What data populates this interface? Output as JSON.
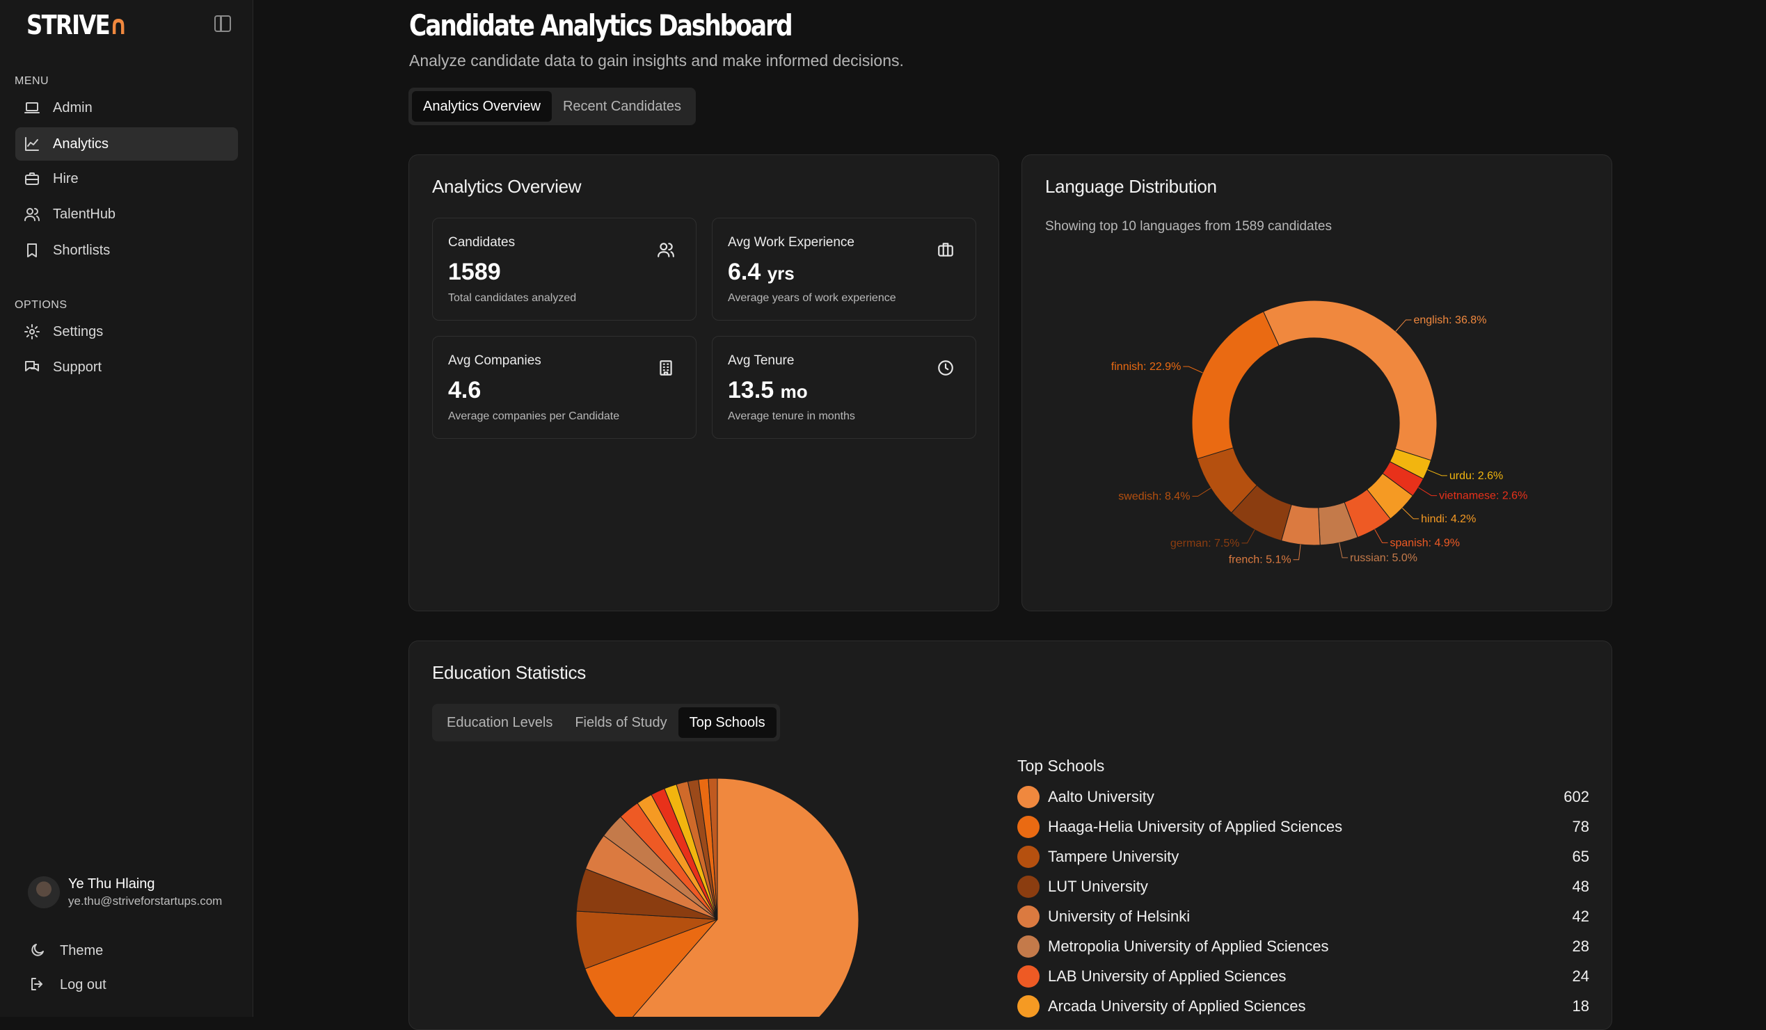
{
  "brand": {
    "name": "STRIVE",
    "accent": "#f0883e"
  },
  "sidebar": {
    "menu_label": "MENU",
    "menu": [
      {
        "label": "Admin",
        "icon": "laptop-icon",
        "active": false
      },
      {
        "label": "Analytics",
        "icon": "chart-line-icon",
        "active": true
      },
      {
        "label": "Hire",
        "icon": "briefcase-icon",
        "active": false
      },
      {
        "label": "TalentHub",
        "icon": "users-icon",
        "active": false
      },
      {
        "label": "Shortlists",
        "icon": "bookmark-icon",
        "active": false
      }
    ],
    "options_label": "OPTIONS",
    "options": [
      {
        "label": "Settings",
        "icon": "gear-icon"
      },
      {
        "label": "Support",
        "icon": "chat-icon"
      }
    ],
    "user": {
      "name": "Ye Thu Hlaing",
      "email": "ye.thu@striveforstartups.com"
    },
    "theme_label": "Theme",
    "logout_label": "Log out"
  },
  "header": {
    "title": "Candidate Analytics Dashboard",
    "subtitle": "Analyze candidate data to gain insights and make informed decisions.",
    "tabs": [
      "Analytics Overview",
      "Recent Candidates"
    ],
    "active_tab": "Analytics Overview"
  },
  "overview": {
    "title": "Analytics Overview",
    "stats": [
      {
        "label": "Candidates",
        "value": "1589",
        "unit": "",
        "desc": "Total candidates analyzed",
        "icon": "users-icon"
      },
      {
        "label": "Avg Work Experience",
        "value": "6.4",
        "unit": "yrs",
        "desc": "Average years of work experience",
        "icon": "briefcase-icon"
      },
      {
        "label": "Avg Companies",
        "value": "4.6",
        "unit": "",
        "desc": "Average companies per Candidate",
        "icon": "building-icon"
      },
      {
        "label": "Avg Tenure",
        "value": "13.5",
        "unit": "mo",
        "desc": "Average tenure in months",
        "icon": "clock-icon"
      }
    ]
  },
  "language": {
    "title": "Language Distribution",
    "subtitle": "Showing top 10 languages from 1589 candidates"
  },
  "education": {
    "title": "Education Statistics",
    "tabs": [
      "Education Levels",
      "Fields of Study",
      "Top Schools"
    ],
    "active_tab": "Top Schools",
    "legend_title": "Top Schools"
  },
  "chart_data": [
    {
      "type": "pie",
      "variant": "donut",
      "title": "",
      "slices": [
        {
          "label": "english: 36.8%",
          "value": 36.8,
          "color": "#f0883e"
        },
        {
          "label": "urdu: 2.6%",
          "value": 2.6,
          "color": "#f2b50f"
        },
        {
          "label": "vietnamese: 2.6%",
          "value": 2.6,
          "color": "#e8311a"
        },
        {
          "label": "hindi: 4.2%",
          "value": 4.2,
          "color": "#f59a23"
        },
        {
          "label": "spanish: 4.9%",
          "value": 4.9,
          "color": "#ee5a24"
        },
        {
          "label": "russian: 5.0%",
          "value": 5.0,
          "color": "#c47a4a"
        },
        {
          "label": "french: 5.1%",
          "value": 5.1,
          "color": "#db7a40"
        },
        {
          "label": "german: 7.5%",
          "value": 7.5,
          "color": "#8b3d10"
        },
        {
          "label": "swedish: 8.4%",
          "value": 8.4,
          "color": "#b5500f"
        },
        {
          "label": "finnish: 22.9%",
          "value": 22.9,
          "color": "#ea6a12"
        }
      ],
      "label_colors": {
        "english": "#f0883e",
        "urdu": "#f2b50f",
        "vietnamese": "#e8311a",
        "hindi": "#f59a23",
        "spanish": "#ee5a24",
        "russian": "#c47a4a",
        "french": "#db7a40",
        "german": "#8b3d10",
        "swedish": "#b5500f",
        "finnish": "#ea6a12"
      }
    },
    {
      "type": "pie",
      "title": "Top Schools",
      "slices": [
        {
          "label": "Aalto University",
          "value": 602,
          "color": "#f0883e"
        },
        {
          "label": "Haaga-Helia University of Applied Sciences",
          "value": 78,
          "color": "#ea6a12"
        },
        {
          "label": "Tampere University",
          "value": 65,
          "color": "#b5500f"
        },
        {
          "label": "LUT University",
          "value": 48,
          "color": "#8b3d10"
        },
        {
          "label": "University of Helsinki",
          "value": 42,
          "color": "#db7a40"
        },
        {
          "label": "Metropolia University of Applied Sciences",
          "value": 28,
          "color": "#c47a4a"
        },
        {
          "label": "LAB University of Applied Sciences",
          "value": 24,
          "color": "#ee5a24"
        },
        {
          "label": "Arcada University of Applied Sciences",
          "value": 18,
          "color": "#f59a23"
        }
      ],
      "extra_slices": [
        {
          "value": 16,
          "color": "#e8311a"
        },
        {
          "value": 14,
          "color": "#f2b50f"
        },
        {
          "value": 13,
          "color": "#d06a2a"
        },
        {
          "value": 12,
          "color": "#9c4a1a"
        },
        {
          "value": 11,
          "color": "#ea6a12"
        },
        {
          "value": 10,
          "color": "#c05a20"
        }
      ]
    }
  ]
}
